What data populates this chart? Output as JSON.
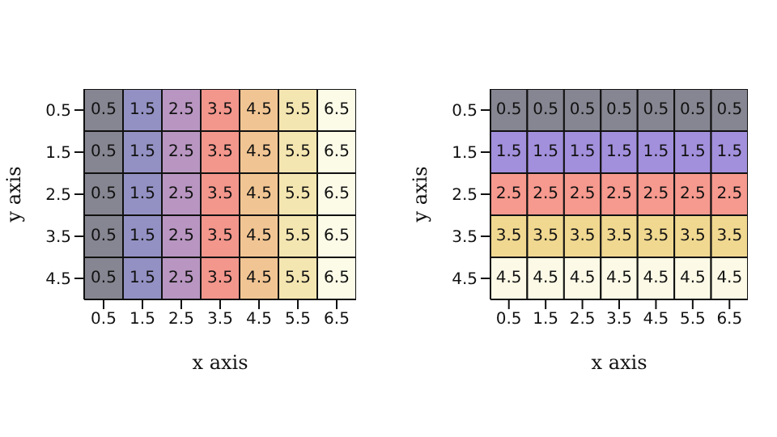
{
  "chart_data": [
    {
      "type": "heatmap",
      "data_labels": true,
      "xlabel": "x axis",
      "ylabel": "y axis",
      "categories": [
        "0.5",
        "1.5",
        "2.5",
        "3.5",
        "4.5",
        "5.5",
        "6.5"
      ],
      "y_categories": [
        "0.5",
        "1.5",
        "2.5",
        "3.5",
        "4.5"
      ],
      "colors": [
        "#868692",
        "#9a96dc",
        "#f3968c",
        "#f0dc96",
        "#fcfbe8"
      ],
      "cells": [
        [
          0.5,
          1.5,
          2.5,
          3.5,
          4.5,
          5.5,
          6.5
        ],
        [
          0.5,
          1.5,
          2.5,
          3.5,
          4.5,
          5.5,
          6.5
        ],
        [
          0.5,
          1.5,
          2.5,
          3.5,
          4.5,
          5.5,
          6.5
        ],
        [
          0.5,
          1.5,
          2.5,
          3.5,
          4.5,
          5.5,
          6.5
        ],
        [
          0.5,
          1.5,
          2.5,
          3.5,
          4.5,
          5.5,
          6.5
        ]
      ]
    },
    {
      "type": "heatmap",
      "data_labels": true,
      "xlabel": "x axis",
      "ylabel": "y axis",
      "categories": [
        "0.5",
        "1.5",
        "2.5",
        "3.5",
        "4.5",
        "5.5",
        "6.5"
      ],
      "y_categories": [
        "0.5",
        "1.5",
        "2.5",
        "3.5",
        "4.5"
      ],
      "colors": [
        "#868692",
        "#a290dc",
        "#f6998e",
        "#f0d890",
        "#fcfae6"
      ],
      "cells": [
        [
          0.5,
          0.5,
          0.5,
          0.5,
          0.5,
          0.5,
          0.5
        ],
        [
          1.5,
          1.5,
          1.5,
          1.5,
          1.5,
          1.5,
          1.5
        ],
        [
          2.5,
          2.5,
          2.5,
          2.5,
          2.5,
          2.5,
          2.5
        ],
        [
          3.5,
          3.5,
          3.5,
          3.5,
          3.5,
          3.5,
          3.5
        ],
        [
          4.5,
          4.5,
          4.5,
          4.5,
          4.5,
          4.5,
          4.5
        ]
      ]
    }
  ]
}
